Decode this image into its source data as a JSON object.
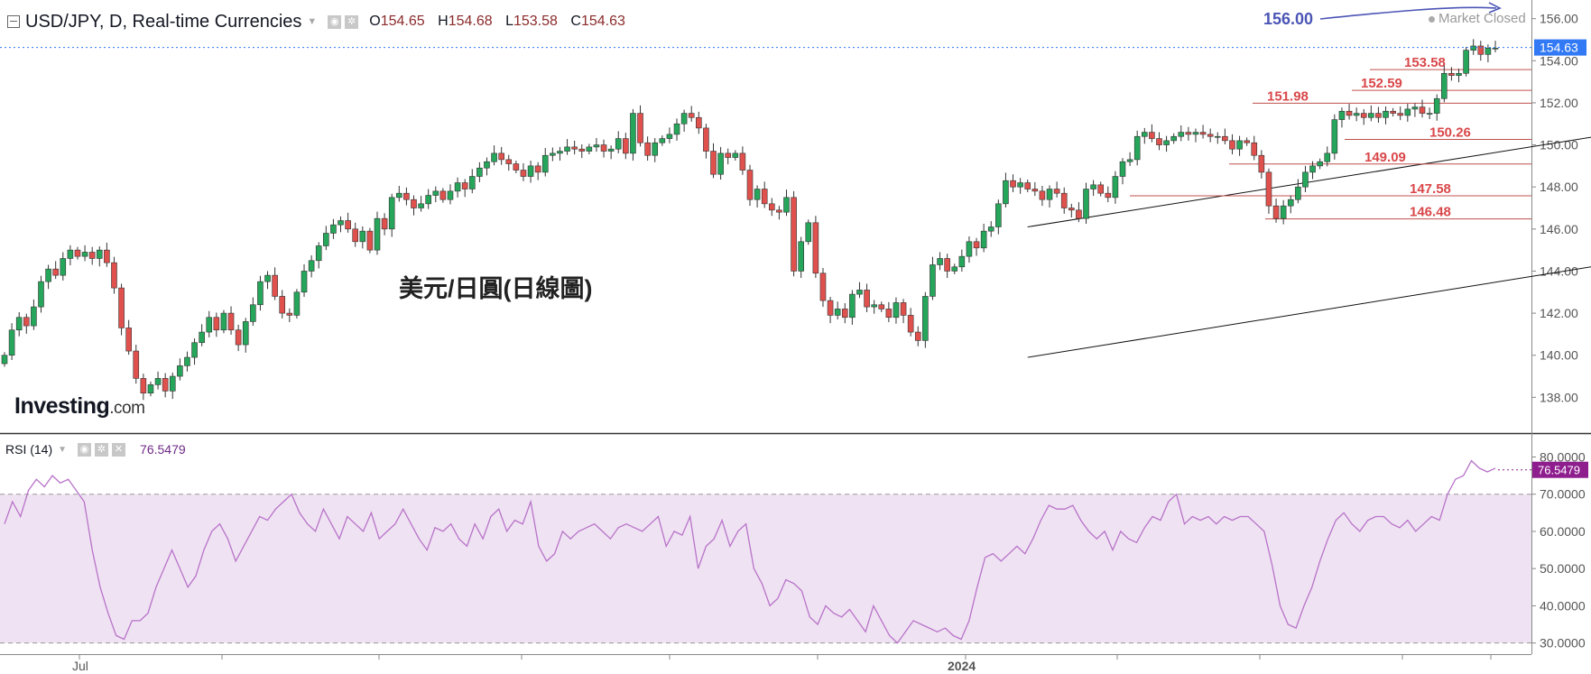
{
  "header": {
    "symbol": "USD/JPY, D, Real-time Currencies",
    "open_label": "O",
    "open": "154.65",
    "high_label": "H",
    "high": "154.68",
    "low_label": "L",
    "low": "153.58",
    "close_label": "C",
    "close": "154.63"
  },
  "market_status": "Market Closed",
  "logo": {
    "name": "Investing",
    "suffix": ".com"
  },
  "annotation_title": "美元/日圓(日線圖)",
  "rsi_header": {
    "label": "RSI (14)",
    "value": "76.5479"
  },
  "icons": [
    "minimize-icon",
    "eye-icon",
    "gear-icon",
    "close-icon",
    "caret-down-icon"
  ],
  "colors": {
    "up": "#26a65b",
    "down": "#e0514d",
    "level": "#c0504d",
    "rsi": "#b873c9",
    "rsi_band": "#efe2f2",
    "last_price": "#3179f5",
    "rsi_last": "#8e1d8e",
    "target": "#4b55b5"
  },
  "chart_data": [
    {
      "type": "candlestick",
      "title": "USD/JPY, D, Real-time Currencies",
      "ylim": [
        136.3,
        156.8
      ],
      "y_ticks": [
        "156.00",
        "154.00",
        "152.00",
        "150.00",
        "148.00",
        "146.00",
        "144.00",
        "142.00",
        "140.00",
        "138.00"
      ],
      "x_ticks": [
        "Jul",
        "2024"
      ],
      "last_price": "154.63",
      "target_label": "156.00",
      "levels": [
        {
          "label": "153.58",
          "value": 153.58
        },
        {
          "label": "152.59",
          "value": 152.59
        },
        {
          "label": "151.98",
          "value": 151.98
        },
        {
          "label": "150.26",
          "value": 150.26
        },
        {
          "label": "149.09",
          "value": 149.09
        },
        {
          "label": "147.58",
          "value": 147.58
        },
        {
          "label": "146.48",
          "value": 146.48
        }
      ],
      "channel": {
        "upper": [
          [
            140,
            146.1
          ],
          [
            330,
            156.6
          ]
        ],
        "lower": [
          [
            140,
            139.9
          ],
          [
            330,
            150.5
          ]
        ]
      },
      "closes": [
        140.0,
        141.2,
        141.8,
        141.4,
        142.3,
        143.5,
        144.1,
        143.8,
        144.6,
        145.0,
        144.7,
        144.9,
        144.6,
        145.0,
        144.4,
        143.2,
        141.3,
        140.2,
        138.9,
        138.2,
        138.6,
        138.9,
        138.3,
        139.0,
        139.5,
        139.9,
        140.6,
        141.1,
        141.8,
        141.2,
        142.0,
        141.2,
        140.5,
        141.6,
        142.4,
        143.5,
        143.8,
        142.8,
        142.0,
        141.9,
        143.0,
        144.0,
        144.5,
        145.2,
        145.8,
        146.2,
        146.4,
        146.0,
        145.4,
        145.9,
        145.0,
        146.5,
        146.0,
        147.5,
        147.7,
        147.4,
        147.0,
        147.2,
        147.6,
        147.8,
        147.4,
        147.8,
        148.2,
        147.9,
        148.5,
        148.9,
        149.2,
        149.6,
        149.3,
        149.1,
        148.8,
        148.5,
        149.0,
        148.7,
        149.5,
        149.6,
        149.7,
        149.9,
        149.8,
        149.7,
        149.9,
        150.0,
        149.7,
        149.8,
        150.3,
        149.6,
        151.5,
        150.1,
        149.5,
        150.1,
        150.3,
        150.5,
        151.0,
        151.5,
        151.3,
        150.8,
        149.7,
        148.6,
        149.6,
        149.4,
        149.6,
        148.8,
        147.4,
        147.9,
        147.2,
        146.9,
        146.8,
        147.5,
        144.0,
        145.4,
        146.3,
        143.9,
        142.6,
        141.9,
        142.2,
        141.8,
        142.9,
        143.1,
        142.3,
        142.4,
        142.2,
        141.8,
        142.5,
        141.9,
        141.1,
        140.7,
        142.8,
        144.3,
        144.6,
        144.0,
        144.2,
        144.7,
        145.4,
        145.1,
        145.9,
        146.1,
        147.2,
        148.3,
        148.0,
        148.2,
        147.9,
        147.8,
        147.4,
        147.9,
        147.7,
        147.0,
        146.9,
        146.5,
        147.9,
        148.1,
        147.7,
        147.5,
        148.5,
        149.2,
        149.3,
        150.4,
        150.6,
        150.3,
        150.0,
        150.2,
        150.4,
        150.6,
        150.5,
        150.6,
        150.5,
        150.4,
        150.4,
        150.2,
        149.8,
        150.2,
        150.1,
        149.5,
        148.7,
        147.1,
        146.5,
        147.1,
        147.4,
        148.0,
        148.7,
        149.0,
        149.2,
        149.6,
        151.2,
        151.6,
        151.4,
        151.5,
        151.3,
        151.5,
        151.3,
        151.6,
        151.5,
        151.4,
        151.7,
        151.8,
        151.5,
        151.5,
        152.2,
        153.4,
        153.3,
        153.4,
        154.5,
        154.7,
        154.3,
        154.6,
        154.6
      ],
      "rsi": {
        "ylim": [
          27,
          84
        ],
        "y_ticks": [
          "80.0000",
          "70.0000",
          "60.0000",
          "50.0000",
          "40.0000",
          "30.0000"
        ],
        "bands": [
          70,
          30
        ],
        "last_value": "76.5479",
        "values": [
          62,
          68,
          64,
          71,
          74,
          72,
          75,
          73,
          74,
          71,
          68,
          55,
          45,
          38,
          32,
          31,
          36,
          36,
          38,
          45,
          50,
          55,
          50,
          45,
          48,
          55,
          60,
          62,
          58,
          52,
          56,
          60,
          64,
          63,
          66,
          68,
          70,
          65,
          62,
          60,
          66,
          62,
          58,
          64,
          62,
          60,
          65,
          58,
          60,
          62,
          66,
          62,
          58,
          55,
          61,
          60,
          62,
          58,
          56,
          62,
          58,
          64,
          66,
          60,
          63,
          62,
          68,
          56,
          52,
          54,
          60,
          58,
          60,
          61,
          62,
          60,
          58,
          61,
          62,
          61,
          60,
          62,
          64,
          56,
          60,
          59,
          64,
          50,
          56,
          58,
          63,
          56,
          60,
          62,
          50,
          46,
          40,
          42,
          47,
          46,
          44,
          37,
          35,
          40,
          38,
          37,
          39,
          36,
          33,
          40,
          36,
          32,
          30,
          33,
          36,
          35,
          34,
          33,
          34,
          32,
          31,
          36,
          45,
          53,
          54,
          52,
          54,
          56,
          54,
          58,
          63,
          67,
          66,
          66,
          67,
          63,
          60,
          58,
          60,
          55,
          60,
          58,
          57,
          61,
          64,
          63,
          68,
          70,
          62,
          64,
          63,
          64,
          62,
          64,
          63,
          64,
          64,
          62,
          60,
          51,
          40,
          35,
          34,
          40,
          45,
          52,
          58,
          63,
          65,
          62,
          60,
          63,
          64,
          64,
          62,
          61,
          63,
          60,
          62,
          64,
          63,
          70,
          74,
          75,
          79,
          77,
          76,
          77
        ]
      }
    }
  ]
}
